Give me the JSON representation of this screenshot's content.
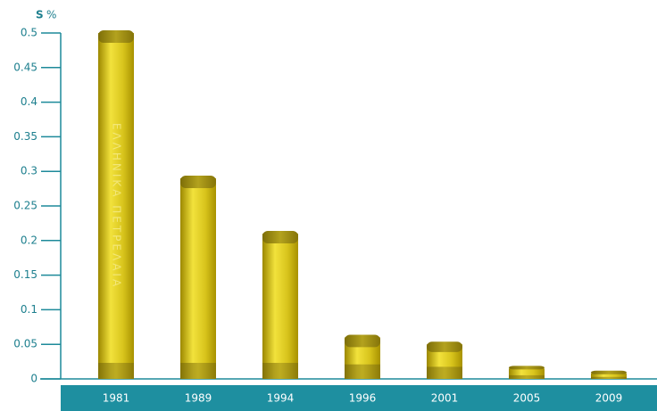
{
  "chart_data": {
    "type": "bar",
    "y_label": "S",
    "y_unit": "%",
    "categories": [
      "1981",
      "1989",
      "1994",
      "1996",
      "2001",
      "2005",
      "2009"
    ],
    "values": [
      0.5,
      0.29,
      0.21,
      0.06,
      0.05,
      0.015,
      0.008
    ],
    "color": "#d8c41c",
    "bar_text": "ΕΛΛΗΝΙΚΑ ΠΕΤΡΕΛΑΙΑ",
    "ylim": [
      0,
      0.5
    ],
    "yticks": [
      0,
      0.05,
      0.1,
      0.15,
      0.2,
      0.25,
      0.3,
      0.35,
      0.4,
      0.45,
      0.5
    ]
  }
}
